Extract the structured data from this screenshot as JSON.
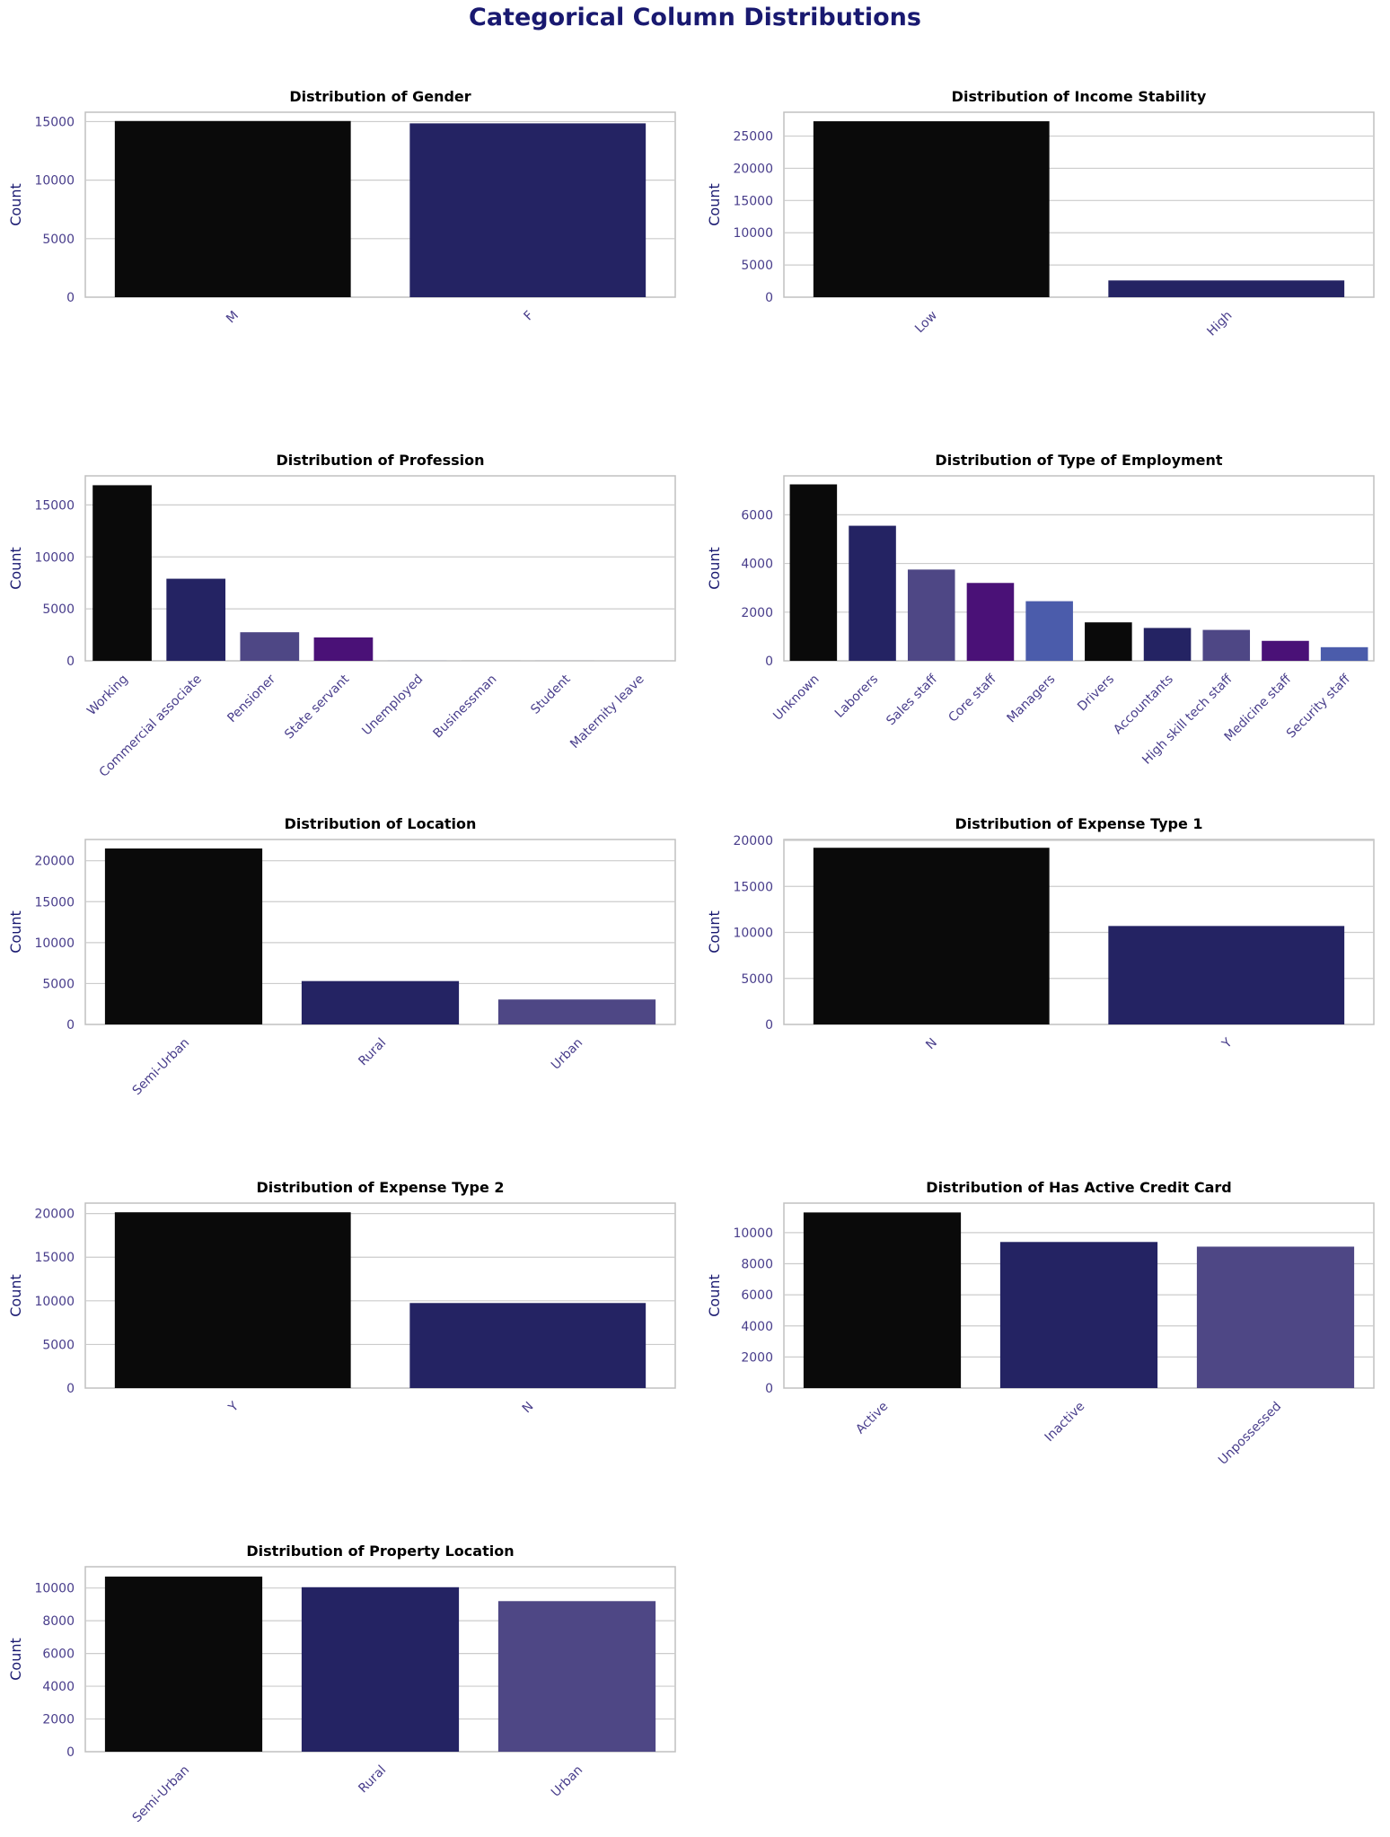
{
  "title": "Categorical Column Distributions",
  "colors": {
    "title": "#191970",
    "tick_labels": "#483d8b",
    "axis_labels": "#191970",
    "grid": "#cccccc",
    "frame": "#c0c0c0",
    "palette": [
      "#0a0a0a",
      "#242363",
      "#4e4785",
      "#4a1177",
      "#4b5cab"
    ]
  },
  "chart_data": [
    {
      "type": "bar",
      "title": "Distribution of Gender",
      "xlabel": "",
      "ylabel": "Count",
      "categories": [
        "M",
        "F"
      ],
      "values": [
        15050,
        14850
      ],
      "ylim": [
        0,
        15800
      ],
      "yticks": [
        0,
        5000,
        10000,
        15000
      ],
      "grid": true,
      "x_tick_rotation": -45
    },
    {
      "type": "bar",
      "title": "Distribution of Income Stability",
      "xlabel": "",
      "ylabel": "Count",
      "categories": [
        "Low",
        "High"
      ],
      "values": [
        27300,
        2600
      ],
      "ylim": [
        0,
        28700
      ],
      "yticks": [
        0,
        5000,
        10000,
        15000,
        20000,
        25000
      ],
      "grid": true,
      "x_tick_rotation": -45
    },
    {
      "type": "bar",
      "title": "Distribution of Profession",
      "xlabel": "",
      "ylabel": "Count",
      "categories": [
        "Working",
        "Commercial associate",
        "Pensioner",
        "State servant",
        "Unemployed",
        "Businessman",
        "Student",
        "Maternity leave"
      ],
      "values": [
        16900,
        7900,
        2750,
        2250,
        5,
        3,
        2,
        1
      ],
      "ylim": [
        0,
        17800
      ],
      "yticks": [
        0,
        5000,
        10000,
        15000
      ],
      "grid": true,
      "x_tick_rotation": -45
    },
    {
      "type": "bar",
      "title": "Distribution of Type of Employment",
      "xlabel": "",
      "ylabel": "Count",
      "categories": [
        "Unknown",
        "Laborers",
        "Sales staff",
        "Core staff",
        "Managers",
        "Drivers",
        "Accountants",
        "High skill tech staff",
        "Medicine staff",
        "Security staff"
      ],
      "values": [
        7250,
        5550,
        3750,
        3200,
        2450,
        1580,
        1350,
        1270,
        820,
        560
      ],
      "ylim": [
        0,
        7600
      ],
      "yticks": [
        0,
        2000,
        4000,
        6000
      ],
      "grid": true,
      "x_tick_rotation": -45
    },
    {
      "type": "bar",
      "title": "Distribution of Location",
      "xlabel": "",
      "ylabel": "Count",
      "categories": [
        "Semi-Urban",
        "Rural",
        "Urban"
      ],
      "values": [
        21500,
        5300,
        3050
      ],
      "ylim": [
        0,
        22600
      ],
      "yticks": [
        0,
        5000,
        10000,
        15000,
        20000
      ],
      "grid": true,
      "x_tick_rotation": -45
    },
    {
      "type": "bar",
      "title": "Distribution of Expense Type 1",
      "xlabel": "",
      "ylabel": "Count",
      "categories": [
        "N",
        "Y"
      ],
      "values": [
        19200,
        10700
      ],
      "ylim": [
        0,
        20100
      ],
      "yticks": [
        0,
        5000,
        10000,
        15000,
        20000
      ],
      "grid": true,
      "x_tick_rotation": -45
    },
    {
      "type": "bar",
      "title": "Distribution of Expense Type 2",
      "xlabel": "",
      "ylabel": "Count",
      "categories": [
        "Y",
        "N"
      ],
      "values": [
        20150,
        9750
      ],
      "ylim": [
        0,
        21200
      ],
      "yticks": [
        0,
        5000,
        10000,
        15000,
        20000
      ],
      "grid": true,
      "x_tick_rotation": -45
    },
    {
      "type": "bar",
      "title": "Distribution of Has Active Credit Card",
      "xlabel": "",
      "ylabel": "Count",
      "categories": [
        "Active",
        "Inactive",
        "Unpossessed"
      ],
      "values": [
        11300,
        9400,
        9100
      ],
      "ylim": [
        0,
        11900
      ],
      "yticks": [
        0,
        2000,
        4000,
        6000,
        8000,
        10000
      ],
      "grid": true,
      "x_tick_rotation": -45
    },
    {
      "type": "bar",
      "title": "Distribution of Property Location",
      "xlabel": "",
      "ylabel": "Count",
      "categories": [
        "Semi-Urban",
        "Rural",
        "Urban"
      ],
      "values": [
        10700,
        10050,
        9200
      ],
      "ylim": [
        0,
        11300
      ],
      "yticks": [
        0,
        2000,
        4000,
        6000,
        8000,
        10000
      ],
      "grid": true,
      "x_tick_rotation": -45
    }
  ]
}
